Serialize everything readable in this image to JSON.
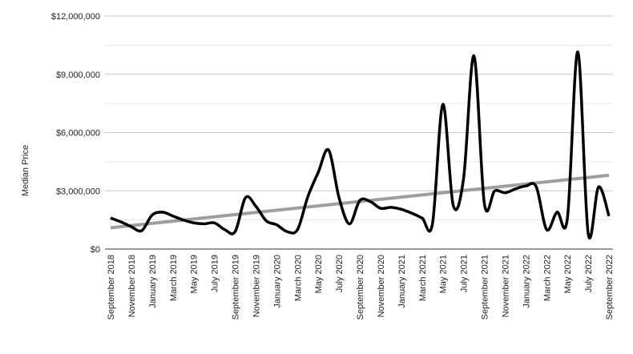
{
  "chart_data": {
    "type": "line",
    "y_label": "Median Price",
    "categories": [
      "September 2018",
      null,
      "November 2018",
      null,
      "January 2019",
      null,
      "March 2019",
      null,
      "May 2019",
      null,
      "July 2019",
      null,
      "September 2019",
      null,
      "November 2019",
      null,
      "January 2020",
      null,
      "March 2020",
      null,
      "May 2020",
      null,
      "July 2020",
      null,
      "September 2020",
      null,
      "November 2020",
      null,
      "January 2021",
      null,
      "March 2021",
      null,
      "May 2021",
      null,
      "July 2021",
      null,
      "September 2021",
      null,
      "November 2021",
      null,
      "January 2022",
      null,
      "March 2022",
      null,
      "May 2022",
      null,
      "July 2022",
      null,
      "September 2022"
    ],
    "series": [
      {
        "color": "#000000",
        "values": [
          1600000,
          1400000,
          1150000,
          950000,
          1750000,
          1900000,
          1700000,
          1500000,
          1350000,
          1300000,
          1350000,
          1000000,
          900000,
          2650000,
          2200000,
          1450000,
          1250000,
          900000,
          1000000,
          2700000,
          3950000,
          5100000,
          2650000,
          1300000,
          2500000,
          2450000,
          2100000,
          2150000,
          2050000,
          1850000,
          1600000,
          1300000,
          7450000,
          2250000,
          3650000,
          9950000,
          2350000,
          3000000,
          2900000,
          3100000,
          3250000,
          3200000,
          1000000,
          1900000,
          1600000,
          10150000,
          800000,
          3200000,
          1700000
        ]
      }
    ],
    "trendline": {
      "color": "#9e9e9e",
      "values": [
        1100000,
        3800000
      ]
    },
    "ylim": [
      0,
      12000000
    ],
    "yticks": [
      {
        "value": 0,
        "label": "$0"
      },
      {
        "value": 3000000,
        "label": "$3,000,000"
      },
      {
        "value": 6000000,
        "label": "$6,000,000"
      },
      {
        "value": 9000000,
        "label": "$9,000,000"
      },
      {
        "value": 12000000,
        "label": "$12,000,000"
      }
    ],
    "minor_yticks": [
      1500000,
      4500000,
      7500000,
      10500000
    ],
    "grid": true
  }
}
